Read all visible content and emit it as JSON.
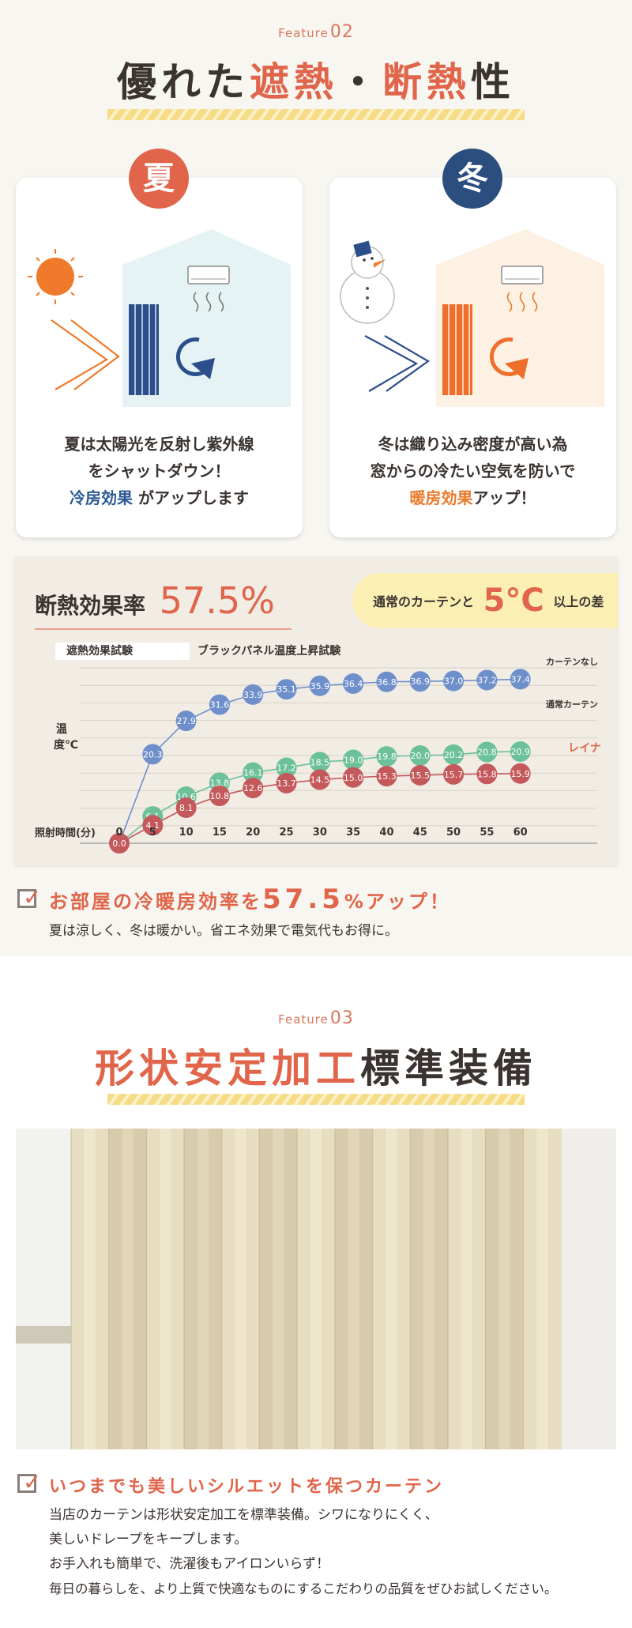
{
  "feature02": {
    "label_word": "Feature",
    "label_num": "02",
    "title_part1": "優れた",
    "title_part2": "遮熱",
    "title_part3": "・",
    "title_part4": "断熱",
    "title_part5": "性"
  },
  "summer": {
    "badge": "夏",
    "line1": "夏は太陽光を反射し紫外線",
    "line2": "をシャットダウン！",
    "line3_accent": "冷房効果",
    "line3_rest": " がアップします",
    "accent_color": "#2b5a94"
  },
  "winter": {
    "badge": "冬",
    "line1": "冬は織り込み密度が高い為",
    "line2": "窓からの冷たい空気を防いで",
    "line3_accent": "暖房効果",
    "line3_rest": "アップ！",
    "accent_color": "#e97a2c"
  },
  "chart_data": {
    "type": "line",
    "title_label": "断熱効果率",
    "title_value": "57.5%",
    "callout_pre": "通常のカーテンと",
    "callout_value": "5°C",
    "callout_post": "以上の差",
    "test_label": "遮熱効果試験",
    "subtitle": "ブラックパネル温度上昇試験",
    "ylabel": "温度℃",
    "xlabel": "照射時間(分)",
    "x": [
      0,
      5,
      10,
      15,
      20,
      25,
      30,
      35,
      40,
      45,
      50,
      55,
      60
    ],
    "series": [
      {
        "name": "カーテンなし",
        "color": "#6f8fcb",
        "values": [
          0.0,
          20.3,
          27.9,
          31.6,
          33.9,
          35.1,
          35.9,
          36.4,
          36.8,
          36.9,
          37.0,
          37.2,
          37.4
        ]
      },
      {
        "name": "通常カーテン",
        "color": "#6cc09a",
        "values": [
          0.0,
          6.1,
          10.6,
          13.8,
          16.1,
          17.2,
          18.5,
          19.0,
          19.8,
          20.0,
          20.2,
          20.8,
          20.9
        ]
      },
      {
        "name": "レイナ",
        "color": "#c4595c",
        "values": [
          0.0,
          4.1,
          8.1,
          10.8,
          12.6,
          13.7,
          14.5,
          15.0,
          15.3,
          15.5,
          15.7,
          15.8,
          15.9
        ]
      }
    ]
  },
  "benefit": {
    "heading_pre": "お部屋の冷暖房効率を",
    "heading_value": "57.5",
    "heading_post": "%アップ！",
    "desc": "夏は涼しく、冬は暖かい。省エネ効果で電気代もお得に。"
  },
  "feature03": {
    "label_word": "Feature",
    "label_num": "03",
    "title_accent": "形状安定加工",
    "title_rest": "標準装備"
  },
  "silhouette": {
    "heading": "いつまでも美しいシルエットを保つカーテン",
    "line1": "当店のカーテンは形状安定加工を標準装備。シワになりにくく、",
    "line2": "美しいドレープをキープします。",
    "line3": "お手入れも簡単で、洗濯後もアイロンいらず！",
    "line4": "毎日の暮らしを、より上質で快適なものにするこだわりの品質をぜひお試しください。"
  }
}
